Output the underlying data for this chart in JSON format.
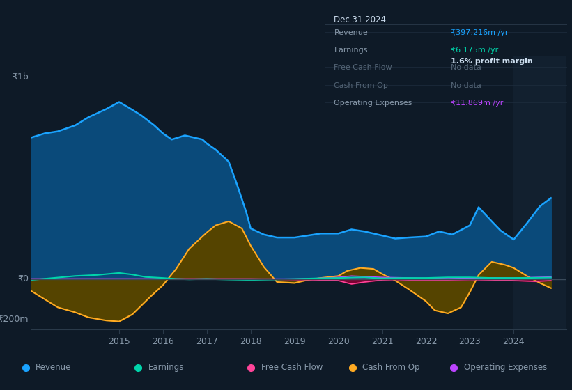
{
  "background_color": "#0e1a27",
  "chart_bg_color": "#0e1a27",
  "grid_color": "#1a2d42",
  "zero_line_color": "#3a4a5a",
  "ylim": [
    -250,
    1100
  ],
  "revenue_color": "#1aa3ff",
  "earnings_color": "#00d4aa",
  "fcf_color": "#ff4499",
  "cashop_color": "#ffaa22",
  "opex_color": "#bb44ff",
  "revenue": {
    "x": [
      2013.0,
      2013.3,
      2013.6,
      2014.0,
      2014.3,
      2014.7,
      2015.0,
      2015.2,
      2015.5,
      2015.8,
      2016.0,
      2016.2,
      2016.5,
      2016.7,
      2016.9,
      2017.0,
      2017.2,
      2017.5,
      2017.7,
      2017.9,
      2018.0,
      2018.3,
      2018.6,
      2019.0,
      2019.3,
      2019.6,
      2020.0,
      2020.3,
      2020.6,
      2021.0,
      2021.3,
      2021.6,
      2022.0,
      2022.3,
      2022.6,
      2023.0,
      2023.2,
      2023.5,
      2023.7,
      2024.0,
      2024.3,
      2024.6,
      2024.85
    ],
    "y": [
      700,
      720,
      730,
      760,
      800,
      840,
      875,
      850,
      810,
      760,
      720,
      690,
      710,
      700,
      690,
      670,
      640,
      580,
      460,
      330,
      250,
      220,
      205,
      205,
      215,
      225,
      225,
      245,
      235,
      215,
      200,
      205,
      210,
      235,
      220,
      265,
      355,
      285,
      240,
      195,
      275,
      360,
      400
    ]
  },
  "earnings": {
    "x": [
      2013.0,
      2013.5,
      2014.0,
      2014.5,
      2015.0,
      2015.3,
      2015.6,
      2016.0,
      2016.3,
      2016.6,
      2017.0,
      2017.5,
      2018.0,
      2018.5,
      2019.0,
      2019.5,
      2020.0,
      2020.3,
      2020.6,
      2021.0,
      2021.5,
      2022.0,
      2022.5,
      2023.0,
      2023.5,
      2024.0,
      2024.5,
      2024.85
    ],
    "y": [
      -5,
      5,
      15,
      20,
      30,
      22,
      10,
      5,
      0,
      -2,
      0,
      -3,
      -5,
      -3,
      0,
      3,
      5,
      7,
      8,
      3,
      5,
      5,
      8,
      8,
      5,
      5,
      6,
      7
    ]
  },
  "fcf": {
    "x": [
      2013.0,
      2014.0,
      2015.0,
      2016.0,
      2017.0,
      2018.0,
      2019.0,
      2019.5,
      2020.0,
      2020.3,
      2020.6,
      2021.0,
      2021.3,
      2021.6,
      2022.0,
      2022.5,
      2023.0,
      2023.5,
      2024.0,
      2024.5,
      2024.85
    ],
    "y": [
      0,
      0,
      0,
      0,
      0,
      0,
      -3,
      -5,
      -8,
      -25,
      -15,
      -5,
      -3,
      -5,
      -5,
      -5,
      -3,
      -5,
      -8,
      -12,
      -8
    ]
  },
  "cashop": {
    "x": [
      2013.0,
      2013.3,
      2013.6,
      2014.0,
      2014.3,
      2014.7,
      2015.0,
      2015.3,
      2015.7,
      2016.0,
      2016.3,
      2016.6,
      2017.0,
      2017.2,
      2017.5,
      2017.8,
      2018.0,
      2018.3,
      2018.6,
      2019.0,
      2019.3,
      2019.6,
      2020.0,
      2020.2,
      2020.5,
      2020.8,
      2021.0,
      2021.3,
      2021.6,
      2022.0,
      2022.2,
      2022.5,
      2022.8,
      2023.0,
      2023.2,
      2023.5,
      2023.8,
      2024.0,
      2024.3,
      2024.6,
      2024.85
    ],
    "y": [
      -60,
      -100,
      -140,
      -165,
      -190,
      -205,
      -210,
      -175,
      -90,
      -30,
      50,
      150,
      230,
      265,
      285,
      250,
      165,
      60,
      -15,
      -20,
      -5,
      5,
      15,
      40,
      55,
      50,
      25,
      -8,
      -50,
      -110,
      -155,
      -170,
      -140,
      -65,
      20,
      85,
      70,
      55,
      15,
      -20,
      -45
    ]
  },
  "opex": {
    "x": [
      2013.0,
      2014.0,
      2015.0,
      2016.0,
      2017.0,
      2018.0,
      2019.0,
      2019.5,
      2020.0,
      2020.3,
      2020.6,
      2021.0,
      2021.5,
      2022.0,
      2022.5,
      2023.0,
      2023.5,
      2024.0,
      2024.5,
      2024.85
    ],
    "y": [
      0,
      0,
      0,
      0,
      0,
      0,
      0,
      3,
      8,
      15,
      12,
      8,
      6,
      4,
      6,
      4,
      6,
      5,
      8,
      10
    ]
  },
  "info_box": {
    "title": "Dec 31 2024",
    "rows": [
      {
        "label": "Revenue",
        "value": "₹397.216m /yr",
        "value_color": "#1aa3ff",
        "dimmed": false
      },
      {
        "label": "Earnings",
        "value": "₹6.175m /yr",
        "value_color": "#00d4aa",
        "sub": "1.6% profit margin",
        "dimmed": false
      },
      {
        "label": "Free Cash Flow",
        "value": "No data",
        "value_color": "#556677",
        "dimmed": true
      },
      {
        "label": "Cash From Op",
        "value": "No data",
        "value_color": "#556677",
        "dimmed": true
      },
      {
        "label": "Operating Expenses",
        "value": "₹11.869m /yr",
        "value_color": "#bb44ff",
        "dimmed": false
      }
    ]
  },
  "legend": [
    {
      "label": "Revenue",
      "color": "#1aa3ff"
    },
    {
      "label": "Earnings",
      "color": "#00d4aa"
    },
    {
      "label": "Free Cash Flow",
      "color": "#ff4499"
    },
    {
      "label": "Cash From Op",
      "color": "#ffaa22"
    },
    {
      "label": "Operating Expenses",
      "color": "#bb44ff"
    }
  ]
}
